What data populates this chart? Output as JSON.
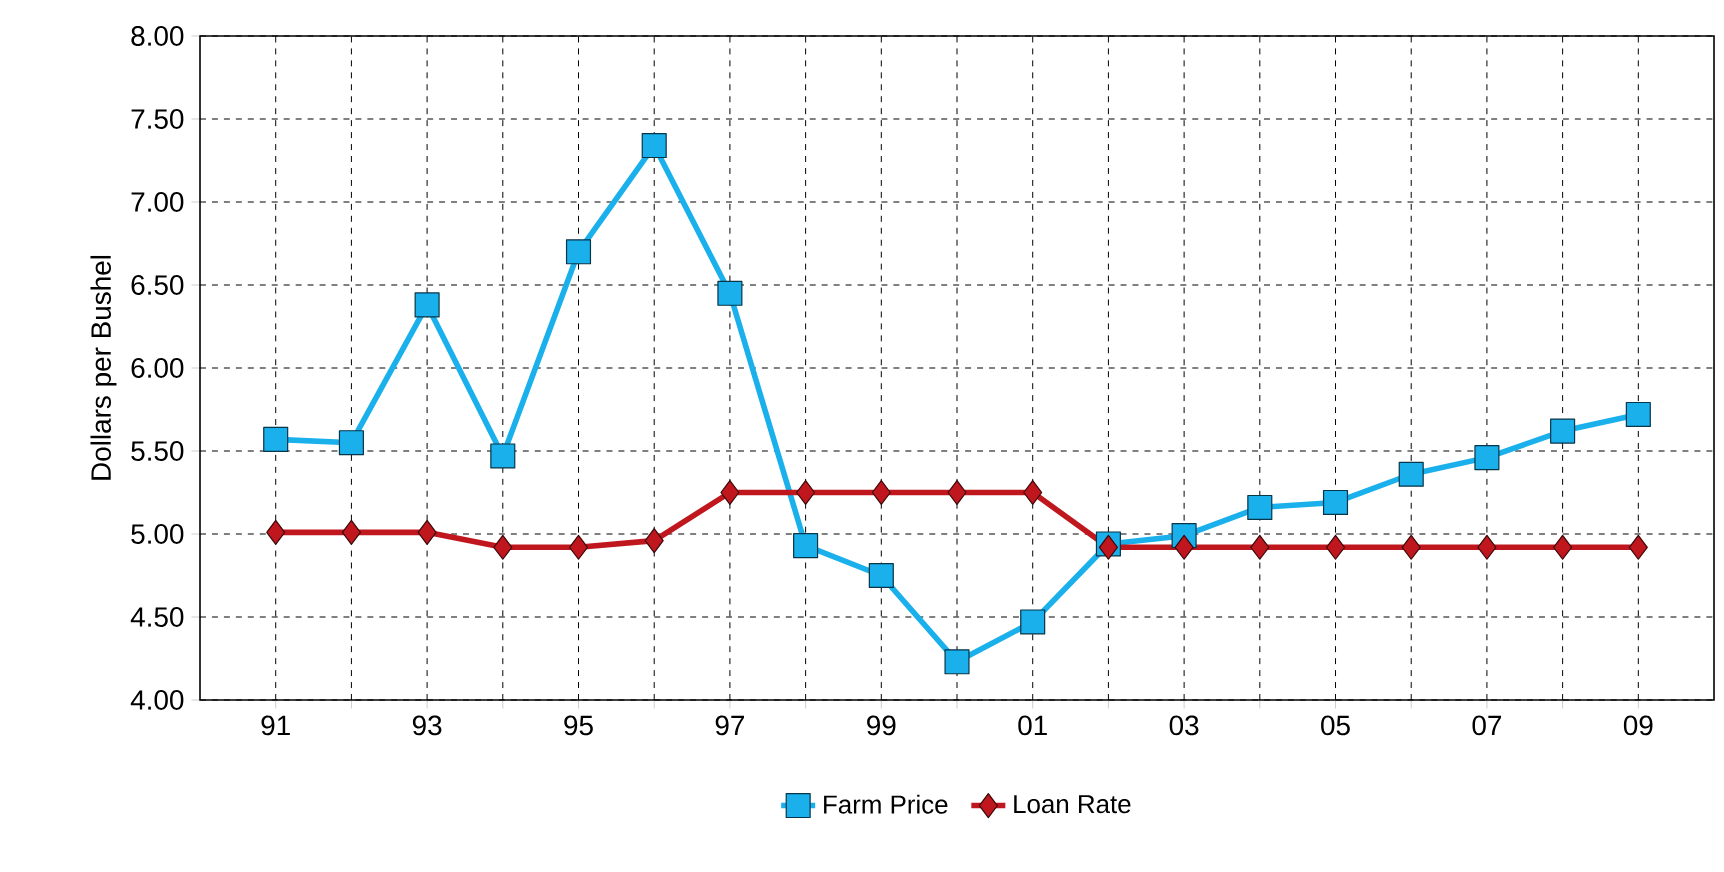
{
  "chart_data": {
    "type": "line",
    "ylabel": "Dollars per Bushel",
    "categories": [
      "91",
      null,
      "93",
      null,
      "95",
      null,
      "97",
      null,
      "99",
      null,
      "01",
      null,
      "03",
      null,
      "05",
      null,
      "07",
      null,
      "09"
    ],
    "series": [
      {
        "name": "Farm Price",
        "color": "#1ab0ec",
        "marker": "square",
        "values": [
          5.57,
          5.55,
          6.38,
          5.47,
          6.7,
          7.34,
          6.45,
          4.93,
          4.75,
          4.23,
          4.47,
          4.94,
          4.99,
          5.16,
          5.19,
          5.36,
          5.46,
          5.62,
          5.72
        ]
      },
      {
        "name": "Loan Rate",
        "color": "#c0171e",
        "marker": "diamond",
        "values": [
          5.01,
          5.01,
          5.01,
          4.92,
          4.92,
          4.96,
          5.25,
          5.25,
          5.25,
          5.25,
          5.25,
          4.92,
          4.92,
          4.92,
          4.92,
          4.92,
          4.92,
          4.92,
          4.92
        ]
      }
    ],
    "ylim": [
      4,
      8
    ],
    "yticks": [
      {
        "value": 4,
        "label": "4.00"
      },
      {
        "value": 4.5,
        "label": "4.50"
      },
      {
        "value": 5,
        "label": "5.00"
      },
      {
        "value": 5.5,
        "label": "5.50"
      },
      {
        "value": 6,
        "label": "6.00"
      },
      {
        "value": 6.5,
        "label": "6.50"
      },
      {
        "value": 7,
        "label": "7.00"
      },
      {
        "value": 7.5,
        "label": "7.50"
      },
      {
        "value": 8,
        "label": "8.00"
      }
    ],
    "grid": true,
    "legend": "bottom",
    "line_style": "solid"
  }
}
